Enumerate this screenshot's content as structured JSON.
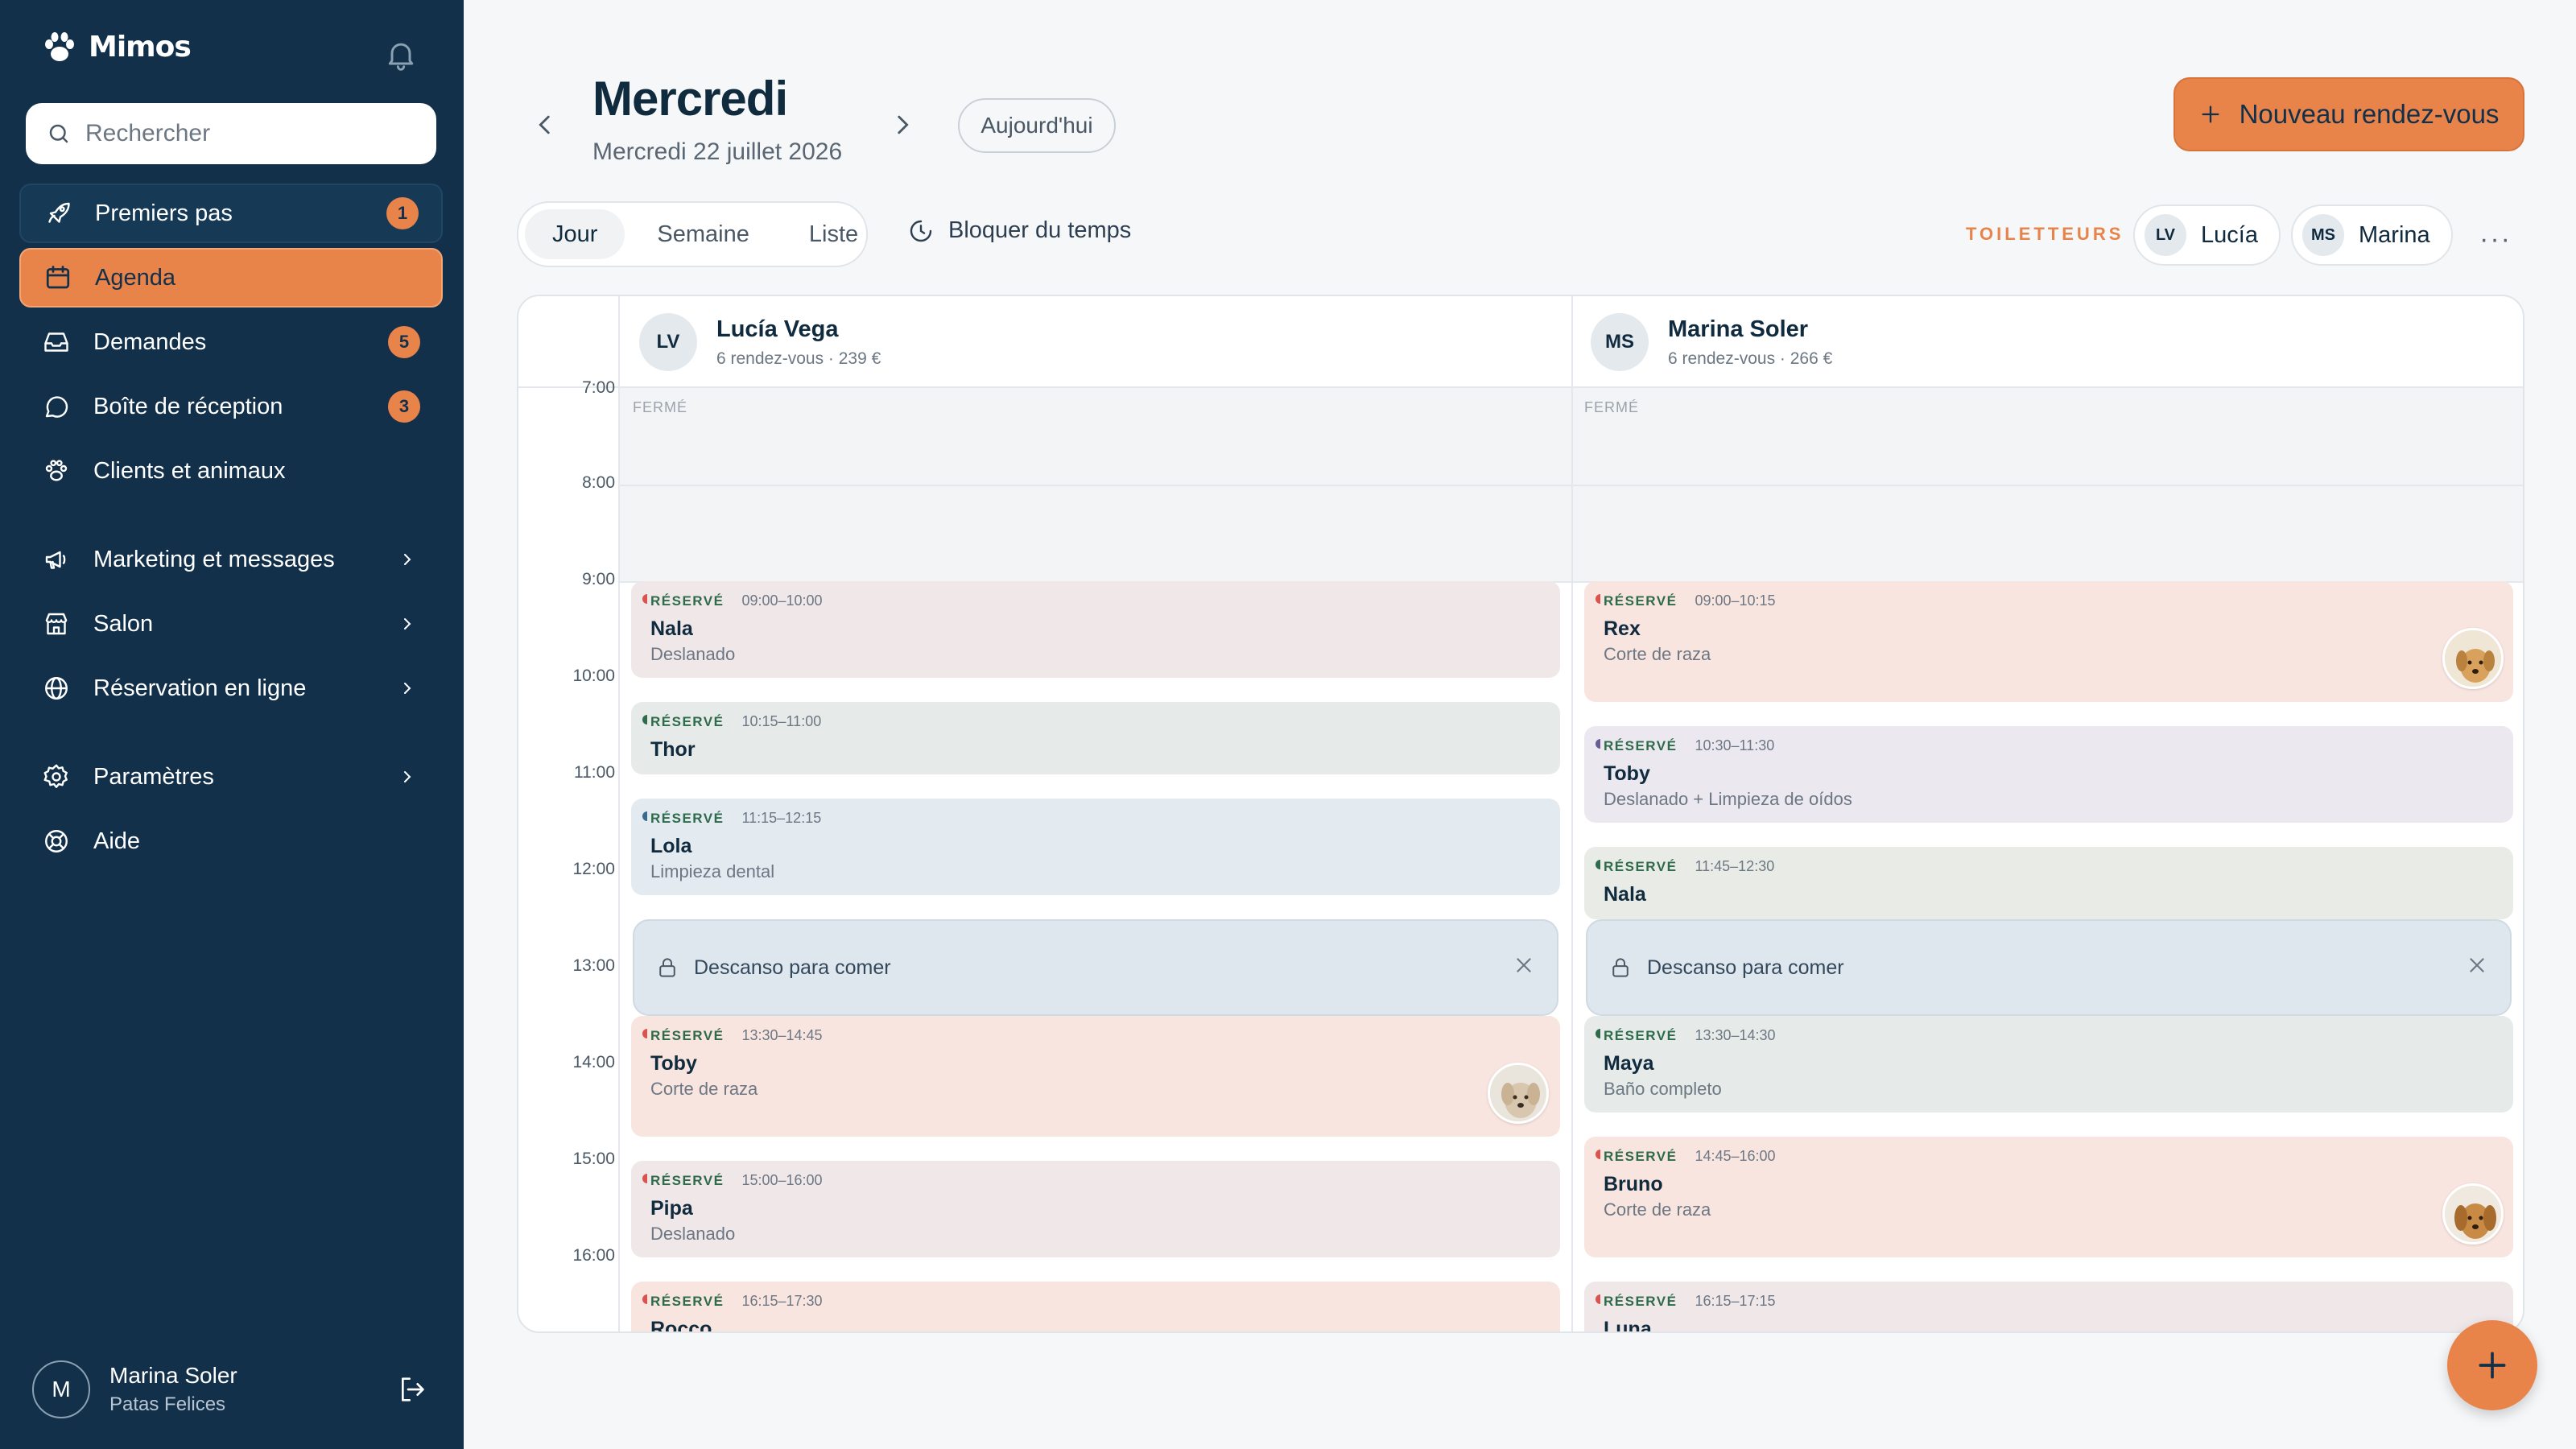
{
  "app": {
    "name": "Mimos"
  },
  "sidebar": {
    "search_placeholder": "Rechercher",
    "items": [
      {
        "label": "Premiers pas",
        "badge": "1"
      },
      {
        "label": "Agenda"
      },
      {
        "label": "Demandes",
        "badge": "5"
      },
      {
        "label": "Boîte de réception",
        "badge": "3"
      },
      {
        "label": "Clients et animaux"
      },
      {
        "label": "Marketing et messages"
      },
      {
        "label": "Salon"
      },
      {
        "label": "Réservation en ligne"
      },
      {
        "label": "Paramètres"
      },
      {
        "label": "Aide"
      }
    ],
    "user": {
      "initial": "M",
      "name": "Marina Soler",
      "salon": "Patas Felices"
    }
  },
  "header": {
    "title": "Mercredi",
    "date": "Mercredi 22 juillet 2026",
    "today_label": "Aujourd'hui",
    "new_appointment_label": "Nouveau rendez-vous"
  },
  "toolbar": {
    "views": [
      "Jour",
      "Semaine",
      "Liste"
    ],
    "active_view": "Jour",
    "block_time_label": "Bloquer du temps",
    "groomers_label": "TOILETTEURS",
    "groomer_chips": [
      {
        "initials": "LV",
        "name": "Lucía"
      },
      {
        "initials": "MS",
        "name": "Marina"
      }
    ]
  },
  "calendar": {
    "hours": [
      "7:00",
      "8:00",
      "9:00",
      "10:00",
      "11:00",
      "12:00",
      "13:00",
      "14:00",
      "15:00",
      "16:00"
    ],
    "closed_label": "FERMÉ",
    "columns": [
      {
        "initials": "LV",
        "name": "Lucía Vega",
        "summary": "6 rendez-vous · 239 €",
        "appointments": [
          {
            "status": "RÉSERVÉ",
            "time": "09:00–10:00",
            "pet": "Nala",
            "service": "Deslanado"
          },
          {
            "status": "RÉSERVÉ",
            "time": "10:15–11:00",
            "pet": "Thor",
            "service": ""
          },
          {
            "status": "RÉSERVÉ",
            "time": "11:15–12:15",
            "pet": "Lola",
            "service": "Limpieza dental"
          },
          {
            "status": "RÉSERVÉ",
            "time": "13:30–14:45",
            "pet": "Toby",
            "service": "Corte de raza"
          },
          {
            "status": "RÉSERVÉ",
            "time": "15:00–16:00",
            "pet": "Pipa",
            "service": "Deslanado"
          },
          {
            "status": "RÉSERVÉ",
            "time": "16:15–17:30",
            "pet": "Rocco",
            "service": ""
          }
        ],
        "break_label": "Descanso para comer"
      },
      {
        "initials": "MS",
        "name": "Marina Soler",
        "summary": "6 rendez-vous · 266 €",
        "appointments": [
          {
            "status": "RÉSERVÉ",
            "time": "09:00–10:15",
            "pet": "Rex",
            "service": "Corte de raza"
          },
          {
            "status": "RÉSERVÉ",
            "time": "10:30–11:30",
            "pet": "Toby",
            "service": "Deslanado + Limpieza de oídos"
          },
          {
            "status": "RÉSERVÉ",
            "time": "11:45–12:30",
            "pet": "Nala",
            "service": ""
          },
          {
            "status": "RÉSERVÉ",
            "time": "13:30–14:30",
            "pet": "Maya",
            "service": "Baño completo"
          },
          {
            "status": "RÉSERVÉ",
            "time": "14:45–16:00",
            "pet": "Bruno",
            "service": "Corte de raza"
          },
          {
            "status": "RÉSERVÉ",
            "time": "16:15–17:15",
            "pet": "Luna",
            "service": ""
          }
        ],
        "break_label": "Descanso para comer"
      }
    ]
  },
  "colors": {
    "accent": "#e8834a",
    "sidebar_bg": "#12304a",
    "status_green": "#2e6b4a"
  }
}
